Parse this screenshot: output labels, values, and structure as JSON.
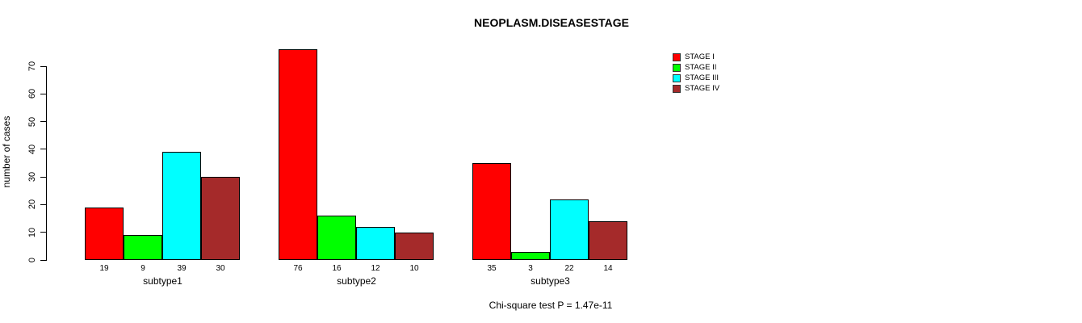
{
  "title": "NEOPLASM.DISEASESTAGE",
  "annotation": "Chi-square test P = 1.47e-11",
  "chart_data": {
    "type": "bar",
    "title": "NEOPLASM.DISEASESTAGE",
    "xlabel": "",
    "ylabel": "number of cases",
    "categories": [
      "subtype1",
      "subtype2",
      "subtype3"
    ],
    "series": [
      {
        "name": "STAGE I",
        "color": "#FF0000",
        "values": [
          19,
          76,
          35
        ]
      },
      {
        "name": "STAGE II",
        "color": "#00FF00",
        "values": [
          9,
          16,
          3
        ]
      },
      {
        "name": "STAGE III",
        "color": "#00FFFF",
        "values": [
          39,
          12,
          22
        ]
      },
      {
        "name": "STAGE IV",
        "color": "#A52A2A",
        "values": [
          30,
          10,
          14
        ]
      }
    ],
    "yticks": [
      0,
      10,
      20,
      30,
      40,
      50,
      60,
      70
    ],
    "ylim": [
      0,
      76
    ],
    "grid": false,
    "legend_position": "right",
    "bar_value_labels_shown": true,
    "annotation": "Chi-square test P = 1.47e-11"
  }
}
